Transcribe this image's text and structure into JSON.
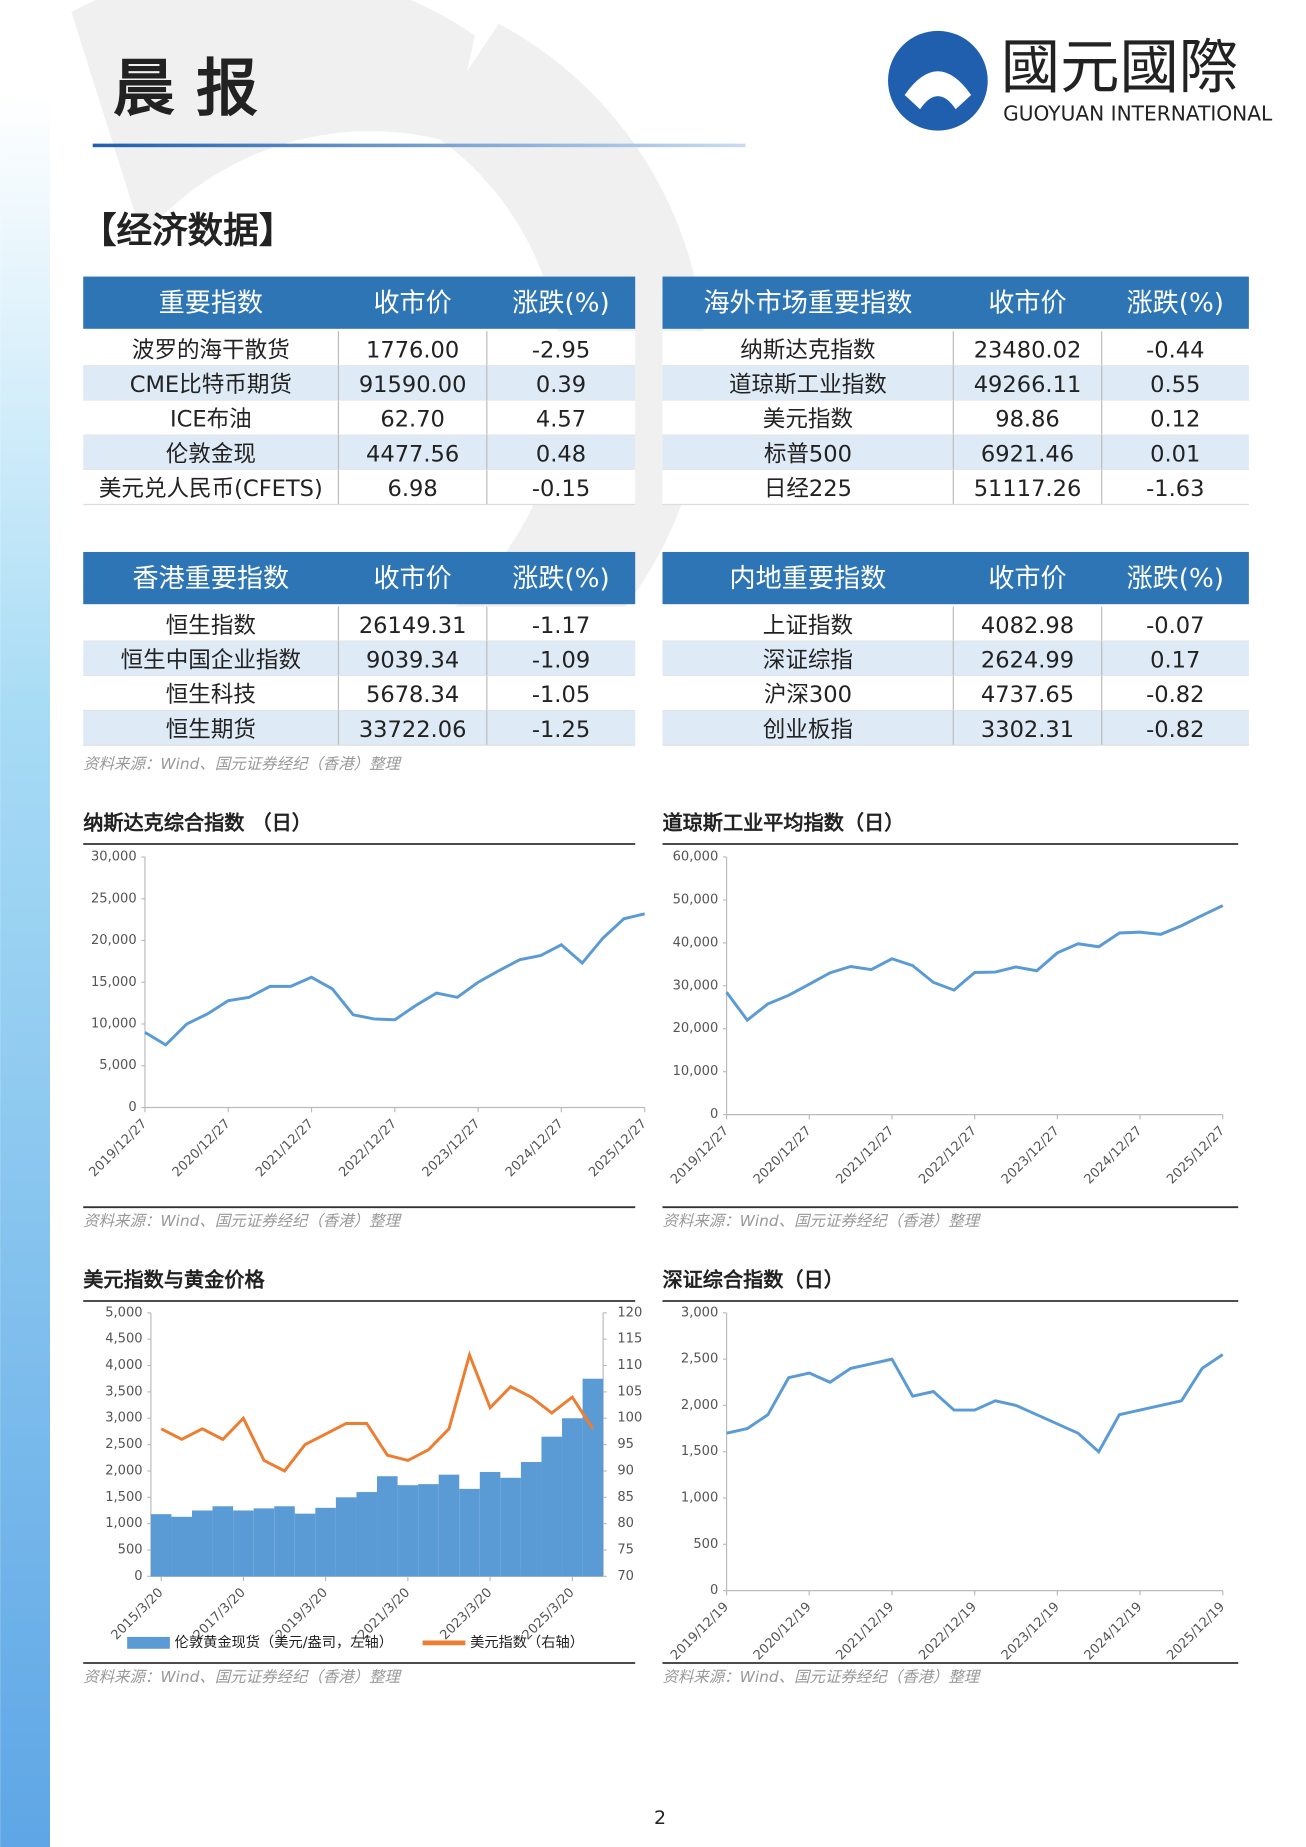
{
  "header": {
    "title": "晨 报",
    "brand_cn": "國元國際",
    "brand_en": "GUOYUAN INTERNATIONAL"
  },
  "section_title": "【经济数据】",
  "tables": [
    {
      "header": [
        "重要指数",
        "收市价",
        "涨跌(%)"
      ],
      "rows": [
        [
          "波罗的海干散货",
          "1776.00",
          "-2.95"
        ],
        [
          "CME比特币期货",
          "91590.00",
          "0.39"
        ],
        [
          "ICE布油",
          "62.70",
          "4.57"
        ],
        [
          "伦敦金现",
          "4477.56",
          "0.48"
        ],
        [
          "美元兑人民币(CFETS)",
          "6.98",
          "-0.15"
        ]
      ]
    },
    {
      "header": [
        "海外市场重要指数",
        "收市价",
        "涨跌(%)"
      ],
      "rows": [
        [
          "纳斯达克指数",
          "23480.02",
          "-0.44"
        ],
        [
          "道琼斯工业指数",
          "49266.11",
          "0.55"
        ],
        [
          "美元指数",
          "98.86",
          "0.12"
        ],
        [
          "标普500",
          "6921.46",
          "0.01"
        ],
        [
          "日经225",
          "51117.26",
          "-1.63"
        ]
      ]
    },
    {
      "header": [
        "香港重要指数",
        "收市价",
        "涨跌(%)"
      ],
      "rows": [
        [
          "恒生指数",
          "26149.31",
          "-1.17"
        ],
        [
          "恒生中国企业指数",
          "9039.34",
          "-1.09"
        ],
        [
          "恒生科技",
          "5678.34",
          "-1.05"
        ],
        [
          "恒生期货",
          "33722.06",
          "-1.25"
        ]
      ]
    },
    {
      "header": [
        "内地重要指数",
        "收市价",
        "涨跌(%)"
      ],
      "rows": [
        [
          "上证指数",
          "4082.98",
          "-0.07"
        ],
        [
          "深证综指",
          "2624.99",
          "0.17"
        ],
        [
          "沪深300",
          "4737.65",
          "-0.82"
        ],
        [
          "创业板指",
          "3302.31",
          "-0.82"
        ]
      ]
    }
  ],
  "source_note": "资料来源：Wind、国元证券经纪（香港）整理",
  "chart_data": [
    {
      "type": "line",
      "title": "纳斯达克综合指数 （日）",
      "source": "资料来源：Wind、国元证券经纪（香港）整理",
      "categories": [
        "2019/12/27",
        null,
        null,
        null,
        "2020/12/27",
        null,
        null,
        null,
        "2021/12/27",
        null,
        null,
        null,
        "2022/12/27",
        null,
        null,
        null,
        "2023/12/27",
        null,
        null,
        null,
        "2024/12/27",
        null,
        null,
        null,
        "2025/12/27"
      ],
      "series": [
        {
          "color": "#5b9bd5",
          "values": [
            9000,
            7500,
            10000,
            11200,
            12800,
            13200,
            14500,
            14500,
            15600,
            14200,
            11100,
            10600,
            10500,
            12200,
            13700,
            13200,
            15000,
            16400,
            17700,
            18200,
            19500,
            17300,
            20300,
            22600,
            23200
          ]
        }
      ],
      "ylim": [
        0,
        30000
      ],
      "yticks": [
        0,
        {
          "value": 5000,
          "label": "5,000"
        },
        {
          "value": 10000,
          "label": "10,000"
        },
        {
          "value": 15000,
          "label": "15,000"
        },
        {
          "value": 20000,
          "label": "20,000"
        },
        {
          "value": 25000,
          "label": "25,000"
        },
        {
          "value": 30000,
          "label": "30,000"
        }
      ]
    },
    {
      "type": "line",
      "title": "道琼斯工业平均指数（日）",
      "source": "资料来源：Wind、国元证券经纪（香港）整理",
      "categories": [
        "2019/12/27",
        null,
        null,
        null,
        "2020/12/27",
        null,
        null,
        null,
        "2021/12/27",
        null,
        null,
        null,
        "2022/12/27",
        null,
        null,
        null,
        "2023/12/27",
        null,
        null,
        null,
        "2024/12/27",
        null,
        null,
        null,
        "2025/12/27"
      ],
      "series": [
        {
          "color": "#5b9bd5",
          "values": [
            28500,
            22000,
            25800,
            27800,
            30400,
            33000,
            34500,
            33800,
            36300,
            34700,
            30800,
            29000,
            33100,
            33200,
            34400,
            33500,
            37700,
            39800,
            39100,
            42300,
            42500,
            42000,
            44000,
            46400,
            48700
          ]
        }
      ],
      "ylim": [
        0,
        60000
      ],
      "yticks": [
        0,
        {
          "value": 10000,
          "label": "10,000"
        },
        {
          "value": 20000,
          "label": "20,000"
        },
        {
          "value": 30000,
          "label": "30,000"
        },
        {
          "value": 40000,
          "label": "40,000"
        },
        {
          "value": 50000,
          "label": "50,000"
        },
        {
          "value": 60000,
          "label": "60,000"
        }
      ]
    },
    {
      "type": "combo",
      "title": "美元指数与黄金价格",
      "source": "资料来源：Wind、国元证券经纪（香港）整理",
      "categories": [
        "2015/3/20",
        null,
        null,
        null,
        "2017/3/20",
        null,
        null,
        null,
        "2019/3/20",
        null,
        null,
        null,
        "2021/3/20",
        null,
        null,
        null,
        "2023/3/20",
        null,
        null,
        null,
        "2025/3/20",
        null
      ],
      "series": [
        {
          "name": "伦敦黄金现货（美元/盎司，左轴）",
          "color": "#5b9bd5",
          "values": [
            1180,
            1130,
            1250,
            1330,
            1250,
            1290,
            1330,
            1190,
            1300,
            1500,
            1600,
            1900,
            1730,
            1750,
            1930,
            1660,
            1980,
            1870,
            2170,
            2650,
            3000,
            3750
          ]
        },
        {
          "name": "美元指数（右轴）",
          "color": "#ed7d31",
          "axis": "y2",
          "values": [
            98,
            96,
            98,
            96,
            100,
            92,
            90,
            95,
            97,
            99,
            99,
            93,
            92,
            94,
            98,
            112,
            102,
            106,
            104,
            101,
            104,
            98
          ]
        }
      ],
      "ylim": [
        0,
        5000
      ],
      "yticks": [
        0,
        500,
        {
          "value": 1000,
          "label": "1,000"
        },
        {
          "value": 1500,
          "label": "1,500"
        },
        {
          "value": 2000,
          "label": "2,000"
        },
        {
          "value": 2500,
          "label": "2,500"
        },
        {
          "value": 3000,
          "label": "3,000"
        },
        {
          "value": 3500,
          "label": "3,500"
        },
        {
          "value": 4000,
          "label": "4,000"
        },
        {
          "value": 4500,
          "label": "4,500"
        },
        {
          "value": 5000,
          "label": "5,000"
        }
      ],
      "y2lim": [
        70,
        120
      ],
      "y2ticks": [
        70,
        75,
        80,
        85,
        90,
        95,
        100,
        105,
        110,
        115,
        120
      ]
    },
    {
      "type": "line",
      "title": "深证综合指数（日）",
      "source": "资料来源：Wind、国元证券经纪（香港）整理",
      "categories": [
        "2019/12/19",
        null,
        null,
        null,
        "2020/12/19",
        null,
        null,
        null,
        "2021/12/19",
        null,
        null,
        null,
        "2022/12/19",
        null,
        null,
        null,
        "2023/12/19",
        null,
        null,
        null,
        "2024/12/19",
        null,
        null,
        null,
        "2025/12/19"
      ],
      "series": [
        {
          "color": "#5b9bd5",
          "values": [
            1700,
            1750,
            1900,
            2300,
            2350,
            2250,
            2400,
            2450,
            2500,
            2100,
            2150,
            1950,
            1950,
            2050,
            2000,
            1900,
            1800,
            1700,
            1500,
            1900,
            1950,
            2000,
            2050,
            2400,
            2550
          ]
        }
      ],
      "ylim": [
        0,
        3000
      ],
      "yticks": [
        0,
        500,
        {
          "value": 1000,
          "label": "1,000"
        },
        {
          "value": 1500,
          "label": "1,500"
        },
        {
          "value": 2000,
          "label": "2,000"
        },
        {
          "value": 2500,
          "label": "2,500"
        },
        {
          "value": 3000,
          "label": "3,000"
        }
      ]
    }
  ],
  "page_number": "2"
}
